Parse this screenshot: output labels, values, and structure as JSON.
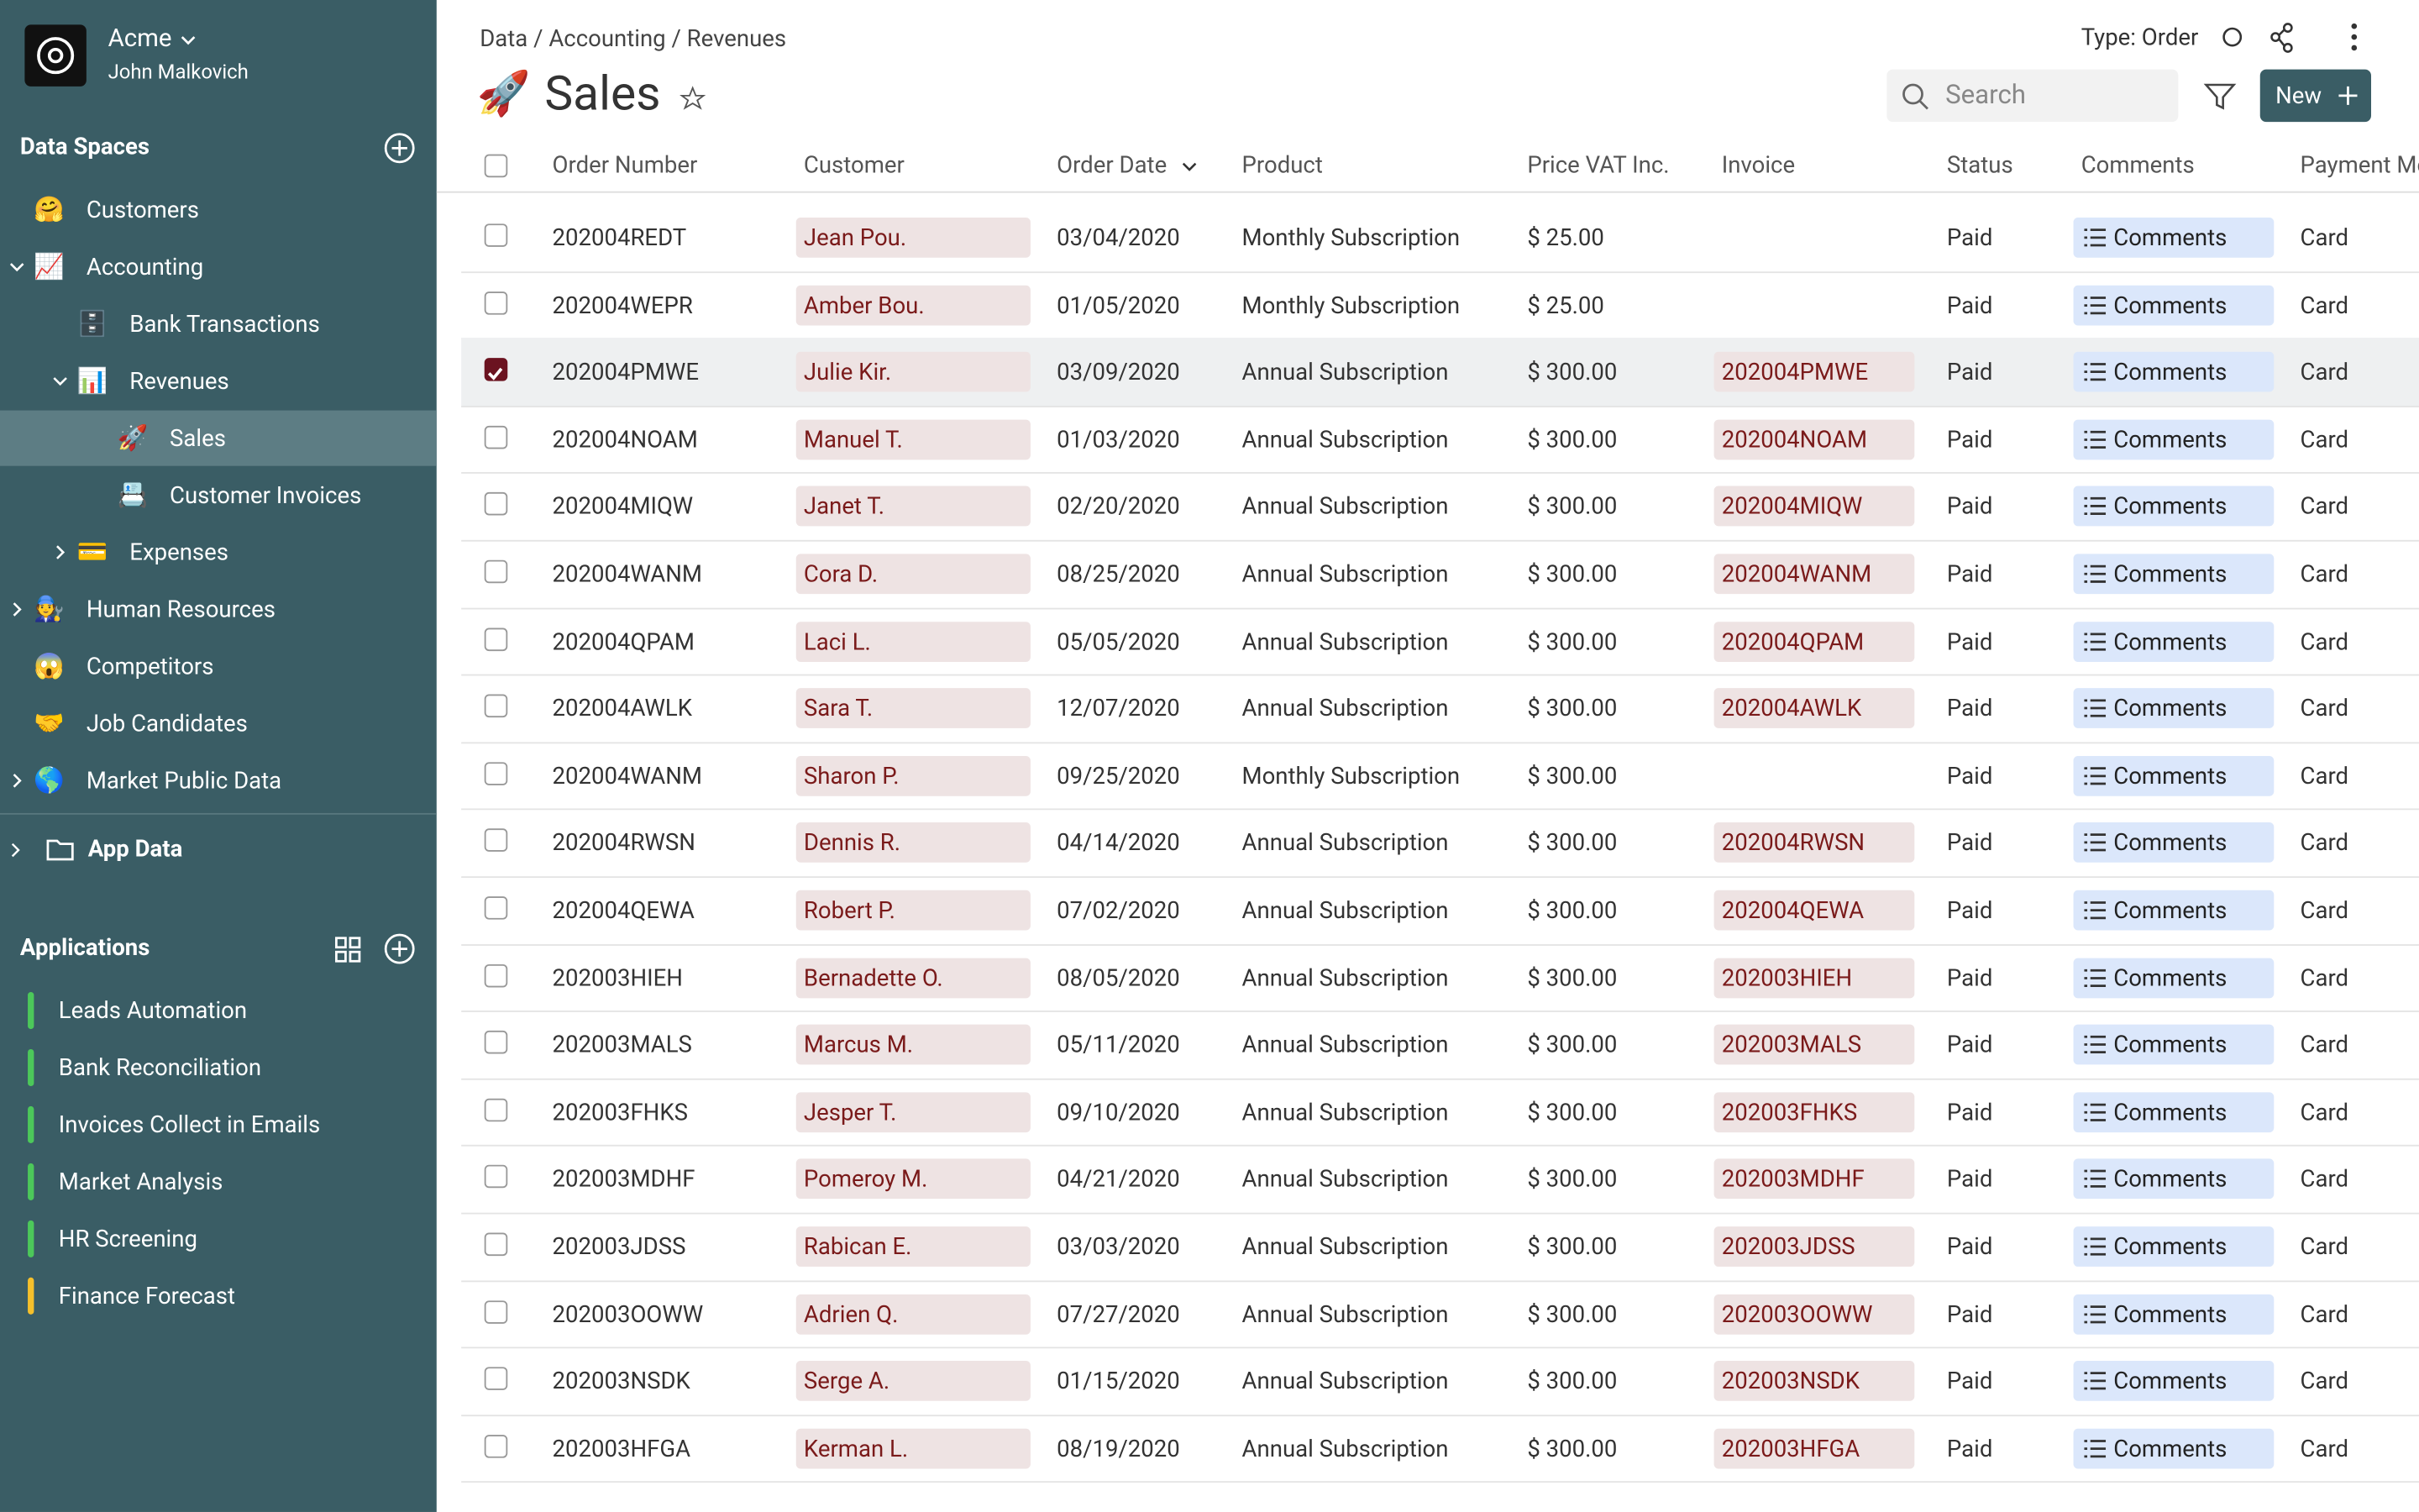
{
  "workspace": {
    "name": "Acme",
    "user": "John Malkovich"
  },
  "data_spaces": {
    "title": "Data Spaces",
    "items": [
      {
        "icon": "🤗",
        "label": "Customers",
        "level": 0,
        "expand": null
      },
      {
        "icon": "📈",
        "label": "Accounting",
        "level": 0,
        "expand": "down"
      },
      {
        "icon": "🗄️",
        "label": "Bank Transactions",
        "level": 1,
        "expand": null
      },
      {
        "icon": "📊",
        "label": "Revenues",
        "level": 1,
        "expand": "down"
      },
      {
        "icon": "🚀",
        "label": "Sales",
        "level": 2,
        "expand": null,
        "selected": true
      },
      {
        "icon": "📇",
        "label": "Customer Invoices",
        "level": 2,
        "expand": null
      },
      {
        "icon": "💳",
        "label": "Expenses",
        "level": 1,
        "expand": "right"
      },
      {
        "icon": "🧑‍🔧",
        "label": "Human Resources",
        "level": 0,
        "expand": "right"
      },
      {
        "icon": "😱",
        "label": "Competitors",
        "level": 0,
        "expand": null
      },
      {
        "icon": "🤝",
        "label": "Job Candidates",
        "level": 0,
        "expand": null
      },
      {
        "icon": "🌎",
        "label": "Market Public Data",
        "level": 0,
        "expand": "right"
      }
    ]
  },
  "app_data": "App Data",
  "applications": {
    "title": "Applications",
    "items": [
      {
        "label": "Leads Automation",
        "color": "#4cc85a"
      },
      {
        "label": "Bank Reconciliation",
        "color": "#4cc85a"
      },
      {
        "label": "Invoices Collect in Emails",
        "color": "#4cc85a"
      },
      {
        "label": "Market Analysis",
        "color": "#4cc85a"
      },
      {
        "label": "HR Screening",
        "color": "#4cc85a"
      },
      {
        "label": "Finance Forecast",
        "color": "#f5c02b"
      }
    ]
  },
  "header": {
    "breadcrumb": "Data / Accounting / Revenues",
    "type": "Type: Order",
    "icon": "🚀",
    "title": "Sales",
    "search": "Search",
    "new_button": "New"
  },
  "table": {
    "columns": [
      "Order Number",
      "Customer",
      "Order Date",
      "Product",
      "Price VAT Inc.",
      "Invoice",
      "Status",
      "Comments",
      "Payment Method"
    ],
    "rows": [
      [
        "202004REDT",
        "Jean Pou.",
        "03/04/2020",
        "Monthly Subscription",
        "$ 25.00",
        "",
        "Paid",
        "Comments",
        "Card"
      ],
      [
        "202004WEPR",
        "Amber Bou.",
        "01/05/2020",
        "Monthly Subscription",
        "$ 25.00",
        "",
        "Paid",
        "Comments",
        "Card"
      ],
      [
        "202004PMWE",
        "Julie Kir.",
        "03/09/2020",
        "Annual Subscription",
        "$ 300.00",
        "202004PMWE",
        "Paid",
        "Comments",
        "Card"
      ],
      [
        "202004NOAM",
        "Manuel T.",
        "01/03/2020",
        "Annual Subscription",
        "$ 300.00",
        "202004NOAM",
        "Paid",
        "Comments",
        "Card"
      ],
      [
        "202004MIQW",
        "Janet T.",
        "02/20/2020",
        "Annual Subscription",
        "$ 300.00",
        "202004MIQW",
        "Paid",
        "Comments",
        "Card"
      ],
      [
        "202004WANM",
        "Cora D.",
        "08/25/2020",
        "Annual Subscription",
        "$ 300.00",
        "202004WANM",
        "Paid",
        "Comments",
        "Card"
      ],
      [
        "202004QPAM",
        "Laci L.",
        "05/05/2020",
        "Annual Subscription",
        "$ 300.00",
        "202004QPAM",
        "Paid",
        "Comments",
        "Card"
      ],
      [
        "202004AWLK",
        "Sara T.",
        "12/07/2020",
        "Annual Subscription",
        "$ 300.00",
        "202004AWLK",
        "Paid",
        "Comments",
        "Card"
      ],
      [
        "202004WANM",
        "Sharon P.",
        "09/25/2020",
        "Monthly Subscription",
        "$ 300.00",
        "",
        "Paid",
        "Comments",
        "Card"
      ],
      [
        "202004RWSN",
        "Dennis R.",
        "04/14/2020",
        "Annual Subscription",
        "$ 300.00",
        "202004RWSN",
        "Paid",
        "Comments",
        "Card"
      ],
      [
        "202004QEWA",
        "Robert P.",
        "07/02/2020",
        "Annual Subscription",
        "$ 300.00",
        "202004QEWA",
        "Paid",
        "Comments",
        "Card"
      ],
      [
        "202003HIEH",
        "Bernadette O.",
        "08/05/2020",
        "Annual Subscription",
        "$ 300.00",
        "202003HIEH",
        "Paid",
        "Comments",
        "Card"
      ],
      [
        "202003MALS",
        "Marcus M.",
        "05/11/2020",
        "Annual Subscription",
        "$ 300.00",
        "202003MALS",
        "Paid",
        "Comments",
        "Card"
      ],
      [
        "202003FHKS",
        "Jesper T.",
        "09/10/2020",
        "Annual Subscription",
        "$ 300.00",
        "202003FHKS",
        "Paid",
        "Comments",
        "Card"
      ],
      [
        "202003MDHF",
        "Pomeroy M.",
        "04/21/2020",
        "Annual Subscription",
        "$ 300.00",
        "202003MDHF",
        "Paid",
        "Comments",
        "Card"
      ],
      [
        "202003JDSS",
        "Rabican E.",
        "03/03/2020",
        "Annual Subscription",
        "$ 300.00",
        "202003JDSS",
        "Paid",
        "Comments",
        "Card"
      ],
      [
        "202003OOWW",
        "Adrien Q.",
        "07/27/2020",
        "Annual Subscription",
        "$ 300.00",
        "202003OOWW",
        "Paid",
        "Comments",
        "Card"
      ],
      [
        "202003NSDK",
        "Serge A.",
        "01/15/2020",
        "Annual Subscription",
        "$ 300.00",
        "202003NSDK",
        "Paid",
        "Comments",
        "Card"
      ],
      [
        "202003HFGA",
        "Kerman L.",
        "08/19/2020",
        "Annual Subscription",
        "$ 300.00",
        "202003HFGA",
        "Paid",
        "Comments",
        "Card"
      ]
    ],
    "selected_row": 2
  }
}
